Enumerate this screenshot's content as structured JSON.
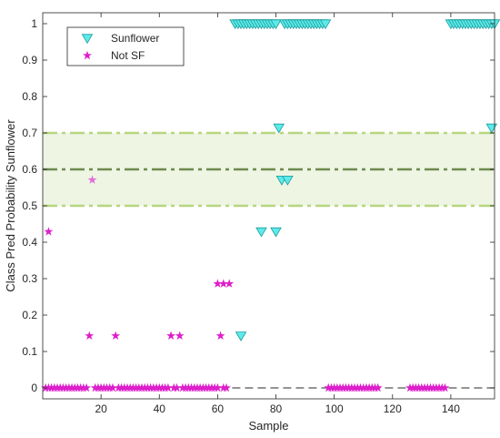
{
  "chart_data": {
    "type": "scatter",
    "title": "",
    "xlabel": "Sample",
    "ylabel": "Class Pred Probability Sunflower",
    "xlim": [
      0,
      155
    ],
    "ylim": [
      0,
      1
    ],
    "xticks": [
      20,
      40,
      60,
      80,
      100,
      120,
      140
    ],
    "yticks": [
      0,
      0.1,
      0.2,
      0.3,
      0.4,
      0.5,
      0.6,
      0.7,
      0.8,
      0.9,
      1
    ],
    "ytick_labels": [
      "0",
      "0.1",
      "0.2",
      "0.3",
      "0.4",
      "0.5",
      "0.6",
      "0.7",
      "0.8",
      "0.9",
      "1"
    ],
    "legend": {
      "position": "top-left",
      "entries": [
        "Sunflower",
        "Not SF"
      ]
    },
    "band": {
      "low": 0.5,
      "high": 0.7,
      "mid": 0.6,
      "color": "#c6dca5"
    },
    "baseline": {
      "y": 0,
      "from_x": 65,
      "to_x": 155,
      "color": "#555555"
    },
    "colors": {
      "sunflower_fill": "#5eeaea",
      "sunflower_edge": "#1a9a9a",
      "notsf": "#dd1fcb",
      "notsf_light": "#e06fd8",
      "band_line": "#b7d67f",
      "mid_line": "#6e8a4e"
    },
    "series": [
      {
        "name": "Sunflower",
        "marker": "triangle-down",
        "points": [
          [
            66,
            1
          ],
          [
            67,
            1
          ],
          [
            68,
            1
          ],
          [
            69,
            1
          ],
          [
            70,
            1
          ],
          [
            71,
            1
          ],
          [
            72,
            1
          ],
          [
            73,
            1
          ],
          [
            74,
            1
          ],
          [
            75,
            1
          ],
          [
            76,
            1
          ],
          [
            77,
            1
          ],
          [
            78,
            1
          ],
          [
            79,
            1
          ],
          [
            80,
            1
          ],
          [
            83,
            1
          ],
          [
            84,
            1
          ],
          [
            85,
            1
          ],
          [
            86,
            1
          ],
          [
            87,
            1
          ],
          [
            88,
            1
          ],
          [
            89,
            1
          ],
          [
            90,
            1
          ],
          [
            91,
            1
          ],
          [
            92,
            1
          ],
          [
            93,
            1
          ],
          [
            94,
            1
          ],
          [
            95,
            1
          ],
          [
            96,
            1
          ],
          [
            97,
            1
          ],
          [
            140,
            1
          ],
          [
            141,
            1
          ],
          [
            142,
            1
          ],
          [
            143,
            1
          ],
          [
            144,
            1
          ],
          [
            145,
            1
          ],
          [
            146,
            1
          ],
          [
            147,
            1
          ],
          [
            148,
            1
          ],
          [
            149,
            1
          ],
          [
            150,
            1
          ],
          [
            151,
            1
          ],
          [
            152,
            1
          ],
          [
            153,
            1
          ],
          [
            154,
            1
          ],
          [
            155,
            1
          ],
          [
            81,
            0.714
          ],
          [
            82,
            0.571
          ],
          [
            84,
            0.571
          ],
          [
            154,
            0.714
          ],
          [
            75,
            0.429
          ],
          [
            80,
            0.429
          ],
          [
            68,
            0.143
          ]
        ]
      },
      {
        "name": "Not SF",
        "marker": "star",
        "points": [
          [
            1,
            0
          ],
          [
            2,
            0
          ],
          [
            3,
            0
          ],
          [
            4,
            0
          ],
          [
            5,
            0
          ],
          [
            6,
            0
          ],
          [
            7,
            0
          ],
          [
            8,
            0
          ],
          [
            9,
            0
          ],
          [
            10,
            0
          ],
          [
            11,
            0
          ],
          [
            12,
            0
          ],
          [
            13,
            0
          ],
          [
            14,
            0
          ],
          [
            15,
            0
          ],
          [
            18,
            0
          ],
          [
            19,
            0
          ],
          [
            20,
            0
          ],
          [
            21,
            0
          ],
          [
            22,
            0
          ],
          [
            23,
            0
          ],
          [
            24,
            0
          ],
          [
            26,
            0
          ],
          [
            27,
            0
          ],
          [
            28,
            0
          ],
          [
            29,
            0
          ],
          [
            30,
            0
          ],
          [
            31,
            0
          ],
          [
            32,
            0
          ],
          [
            33,
            0
          ],
          [
            34,
            0
          ],
          [
            35,
            0
          ],
          [
            36,
            0
          ],
          [
            37,
            0
          ],
          [
            38,
            0
          ],
          [
            39,
            0
          ],
          [
            40,
            0
          ],
          [
            41,
            0
          ],
          [
            42,
            0
          ],
          [
            43,
            0
          ],
          [
            45,
            0
          ],
          [
            46,
            0
          ],
          [
            48,
            0
          ],
          [
            49,
            0
          ],
          [
            50,
            0
          ],
          [
            51,
            0
          ],
          [
            52,
            0
          ],
          [
            53,
            0
          ],
          [
            54,
            0
          ],
          [
            55,
            0
          ],
          [
            56,
            0
          ],
          [
            57,
            0
          ],
          [
            58,
            0
          ],
          [
            59,
            0
          ],
          [
            60,
            0
          ],
          [
            62,
            0
          ],
          [
            63,
            0
          ],
          [
            98,
            0
          ],
          [
            99,
            0
          ],
          [
            100,
            0
          ],
          [
            101,
            0
          ],
          [
            102,
            0
          ],
          [
            103,
            0
          ],
          [
            104,
            0
          ],
          [
            105,
            0
          ],
          [
            106,
            0
          ],
          [
            107,
            0
          ],
          [
            108,
            0
          ],
          [
            109,
            0
          ],
          [
            110,
            0
          ],
          [
            111,
            0
          ],
          [
            112,
            0
          ],
          [
            113,
            0
          ],
          [
            114,
            0
          ],
          [
            115,
            0
          ],
          [
            126,
            0
          ],
          [
            127,
            0
          ],
          [
            128,
            0
          ],
          [
            129,
            0
          ],
          [
            130,
            0
          ],
          [
            131,
            0
          ],
          [
            132,
            0
          ],
          [
            133,
            0
          ],
          [
            134,
            0
          ],
          [
            135,
            0
          ],
          [
            136,
            0
          ],
          [
            137,
            0
          ],
          [
            138,
            0
          ],
          [
            16,
            0.143
          ],
          [
            25,
            0.143
          ],
          [
            44,
            0.143
          ],
          [
            47,
            0.143
          ],
          [
            61,
            0.143
          ],
          [
            60,
            0.286
          ],
          [
            62,
            0.286
          ],
          [
            64,
            0.286
          ],
          [
            2,
            0.429
          ],
          [
            17,
            0.571
          ]
        ]
      }
    ]
  }
}
